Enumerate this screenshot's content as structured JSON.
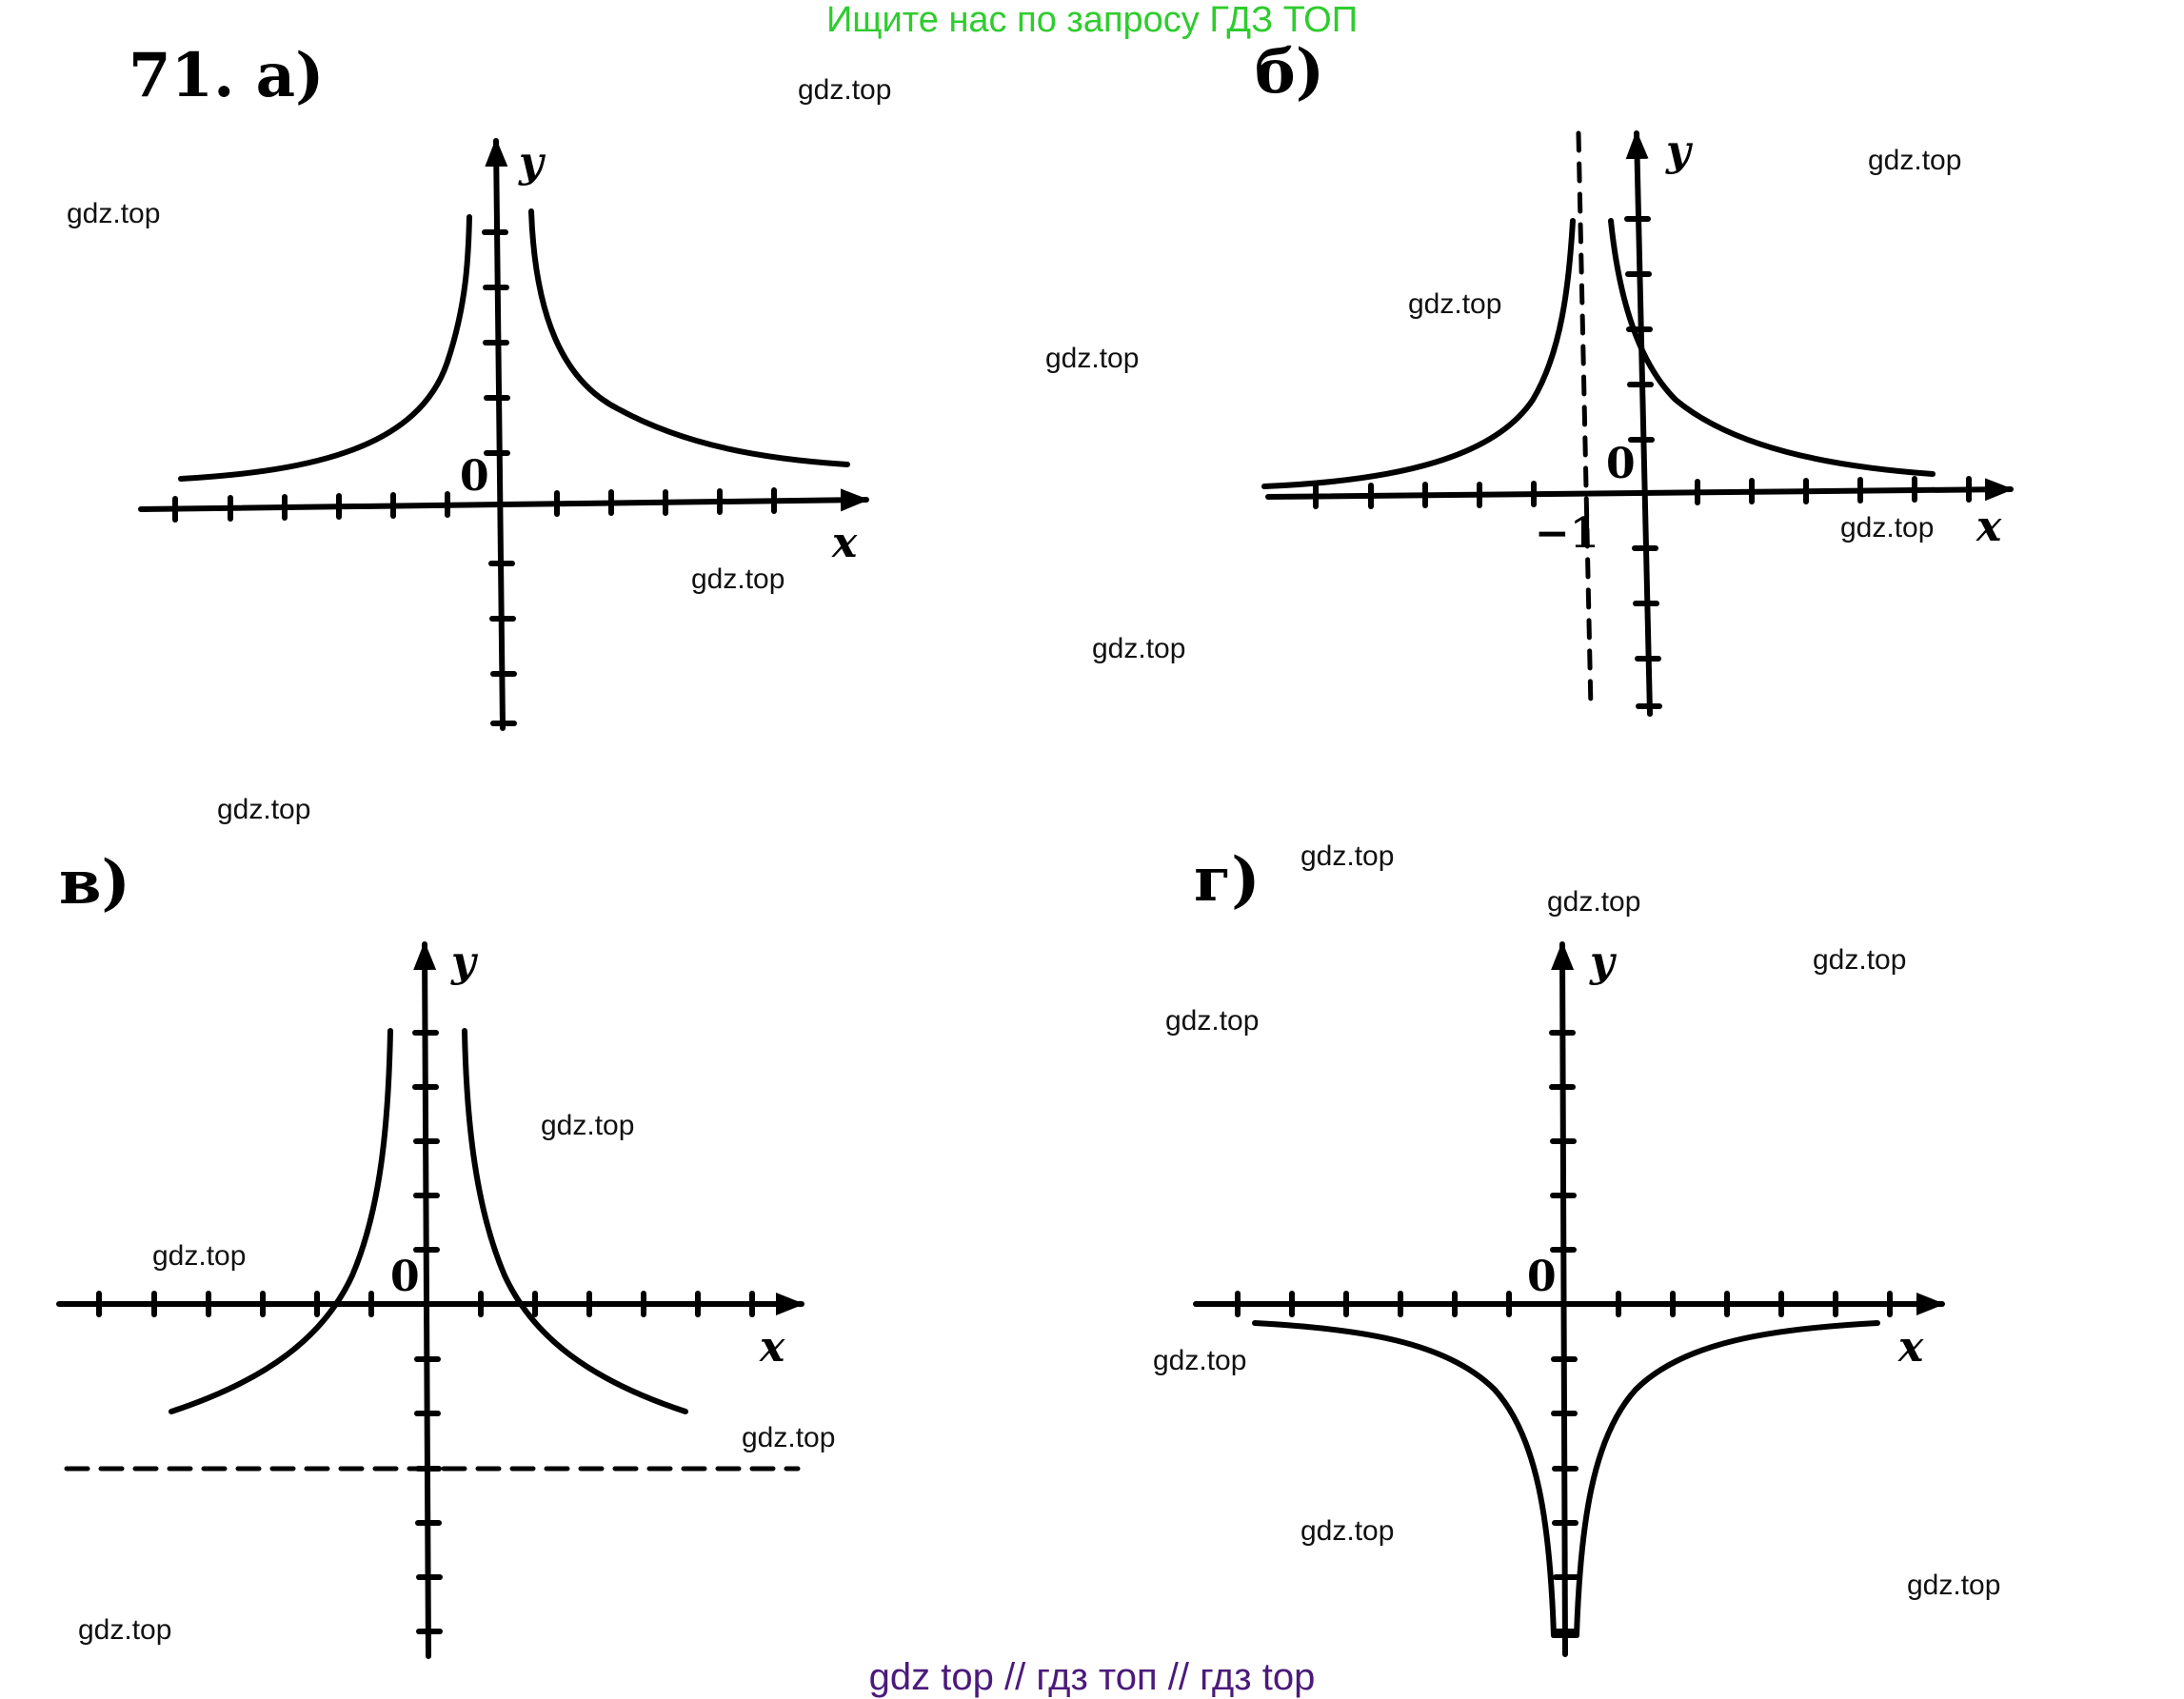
{
  "banner": "Ищите нас по запросу ГДЗ ТОП",
  "footer": "gdz top  //  гдз топ  //  гдз top",
  "watermark": "gdz.top",
  "panels": [
    {
      "id": "a",
      "label": "71. а)",
      "x_axis": "x",
      "y_axis": "y",
      "origin": "0"
    },
    {
      "id": "b",
      "label": "б)",
      "x_axis": "x",
      "y_axis": "y",
      "origin": "0",
      "asymptote_label": "−1"
    },
    {
      "id": "v",
      "label": "в)",
      "x_axis": "x",
      "y_axis": "y",
      "origin": "0"
    },
    {
      "id": "g",
      "label": "г)",
      "x_axis": "x",
      "y_axis": "y",
      "origin": "0"
    }
  ],
  "colors": {
    "banner": "#2ecc2e",
    "footer": "#4b1a7a",
    "ink": "#000000"
  }
}
